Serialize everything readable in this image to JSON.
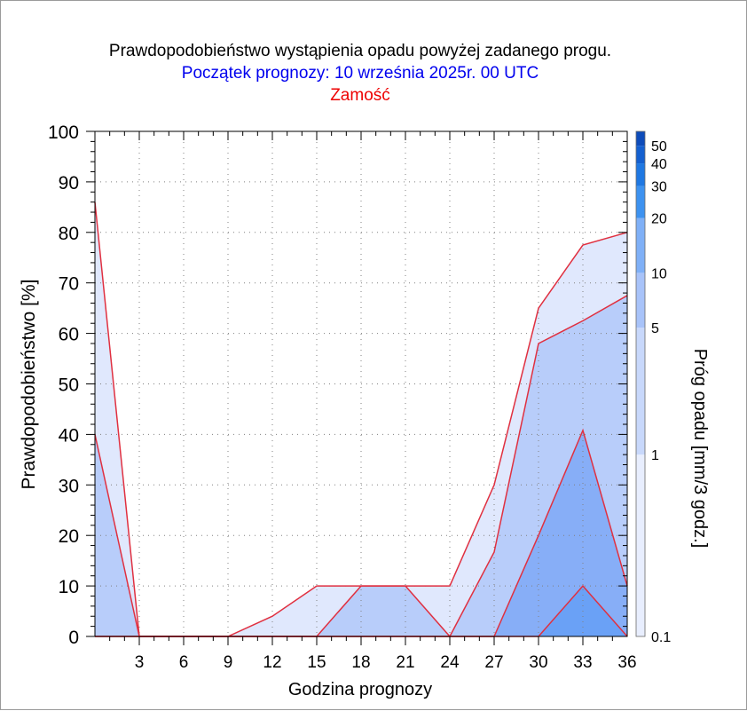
{
  "chart_data": {
    "type": "area",
    "title": "Prawdopodobieństwo wystąpienia opadu powyżej zadanego progu.",
    "subtitle": "Początek prognozy: 10 września 2025r. 00 UTC",
    "location": "Zamość",
    "xlabel": "Godzina prognozy",
    "ylabel": "Prawdopodobieństwo [%]",
    "colorbar_label": "Próg opadu [mm/3 godz.]",
    "xlim": [
      0,
      36
    ],
    "ylim": [
      0,
      100
    ],
    "x_ticks": [
      3,
      6,
      9,
      12,
      15,
      18,
      21,
      24,
      27,
      30,
      33,
      36
    ],
    "y_ticks": [
      0,
      10,
      20,
      30,
      40,
      50,
      60,
      70,
      80,
      90,
      100
    ],
    "grid": true,
    "x": [
      0,
      3,
      6,
      9,
      12,
      15,
      18,
      21,
      24,
      27,
      30,
      33,
      36
    ],
    "series": [
      {
        "threshold": "0.1",
        "color": "#e0e8fd",
        "values": [
          86,
          0,
          0,
          0,
          4,
          10,
          10,
          10,
          10,
          30,
          65,
          77.5,
          80
        ]
      },
      {
        "threshold": "1",
        "color": "#b8cdfa",
        "values": [
          40,
          0,
          0,
          0,
          0,
          0,
          10,
          10,
          0,
          16.7,
          58,
          62.5,
          67.5
        ]
      },
      {
        "threshold": "5",
        "color": "#87aef7",
        "values": [
          0,
          0,
          0,
          0,
          0,
          0,
          0,
          0,
          0,
          0,
          20,
          40.8,
          10
        ]
      },
      {
        "threshold": "10",
        "color": "#6aa1f6",
        "values": [
          0,
          0,
          0,
          0,
          0,
          0,
          0,
          0,
          0,
          0,
          0,
          10,
          0
        ]
      }
    ],
    "colorbar": {
      "labels": [
        "0.1",
        "1",
        "5",
        "10",
        "20",
        "30",
        "40",
        "50"
      ],
      "colors": [
        "#e8eefe",
        "#c8d8fb",
        "#a8c3f9",
        "#7fb0f7",
        "#3d92f0",
        "#1f78e2",
        "#1460d0",
        "#0e4cba",
        "#0a3c9c"
      ],
      "edges": [
        0.1,
        1,
        5,
        10,
        20,
        30,
        40,
        50,
        60
      ]
    },
    "line_color": "#e03040",
    "title_color": "#000000",
    "subtitle_color": "#0000ee",
    "location_color": "#ee0000"
  }
}
